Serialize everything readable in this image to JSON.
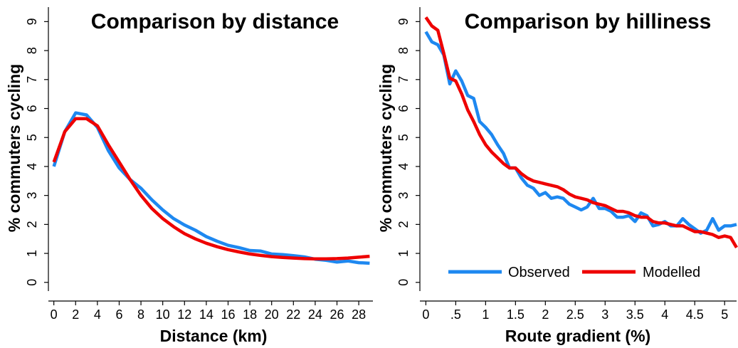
{
  "colors": {
    "observed": "#1e88f0",
    "modelled": "#ee0000"
  },
  "chart_data": [
    {
      "type": "line",
      "title": "Comparison by distance",
      "xlabel": "Distance (km)",
      "ylabel": "% commuters cycling",
      "xlim": [
        -0.5,
        29.3
      ],
      "ylim": [
        -0.3,
        9.5
      ],
      "xticks": [
        0,
        2,
        4,
        6,
        8,
        10,
        12,
        14,
        16,
        18,
        20,
        22,
        24,
        26,
        28
      ],
      "xtick_labels": [
        "0",
        "2",
        "4",
        "6",
        "8",
        "10",
        "12",
        "14",
        "16",
        "18",
        "20",
        "22",
        "24",
        "26",
        "28"
      ],
      "yticks": [
        0,
        1,
        2,
        3,
        4,
        5,
        6,
        7,
        8,
        9
      ],
      "ytick_labels": [
        "0",
        "1",
        "2",
        "3",
        "4",
        "5",
        "6",
        "7",
        "8",
        "9"
      ],
      "grid": false,
      "legend": "none",
      "series": [
        {
          "key": "observed",
          "x": [
            0,
            1,
            2,
            3,
            4,
            5,
            6,
            7,
            8,
            9,
            10,
            11,
            12,
            13,
            14,
            15,
            16,
            17,
            18,
            19,
            20,
            21,
            22,
            23,
            24,
            25,
            26,
            27,
            28,
            29
          ],
          "y": [
            4.0,
            5.2,
            5.85,
            5.78,
            5.35,
            4.55,
            3.95,
            3.55,
            3.25,
            2.85,
            2.5,
            2.2,
            1.98,
            1.8,
            1.58,
            1.42,
            1.28,
            1.2,
            1.1,
            1.08,
            0.98,
            0.96,
            0.92,
            0.88,
            0.8,
            0.76,
            0.7,
            0.74,
            0.68,
            0.66
          ]
        },
        {
          "key": "modelled",
          "x": [
            0,
            1,
            2,
            3,
            4,
            5,
            6,
            7,
            8,
            9,
            10,
            11,
            12,
            13,
            14,
            15,
            16,
            17,
            18,
            19,
            20,
            21,
            22,
            23,
            24,
            25,
            26,
            27,
            28,
            29
          ],
          "y": [
            4.15,
            5.2,
            5.65,
            5.65,
            5.4,
            4.75,
            4.15,
            3.55,
            3.0,
            2.55,
            2.2,
            1.92,
            1.68,
            1.5,
            1.35,
            1.23,
            1.13,
            1.05,
            0.98,
            0.93,
            0.89,
            0.86,
            0.84,
            0.82,
            0.81,
            0.81,
            0.82,
            0.84,
            0.87,
            0.9
          ]
        }
      ]
    },
    {
      "type": "line",
      "title": "Comparison by hilliness",
      "xlabel": "Route gradient (%)",
      "ylabel": "% commuters cycling",
      "xlim": [
        -0.1,
        5.2
      ],
      "ylim": [
        -0.3,
        9.5
      ],
      "xticks": [
        0,
        0.5,
        1,
        1.5,
        2,
        2.5,
        3,
        3.5,
        4,
        4.5,
        5
      ],
      "xtick_labels": [
        "0",
        ".5",
        "1",
        "1.5",
        "2",
        "2.5",
        "3",
        "3.5",
        "4",
        "4.5",
        "5"
      ],
      "yticks": [
        0,
        1,
        2,
        3,
        4,
        5,
        6,
        7,
        8,
        9
      ],
      "ytick_labels": [
        "0",
        "1",
        "2",
        "3",
        "4",
        "5",
        "6",
        "7",
        "8",
        "9"
      ],
      "grid": false,
      "legend": "bottom-center",
      "series": [
        {
          "key": "observed",
          "name": "Observed",
          "x": [
            0,
            0.1,
            0.2,
            0.3,
            0.4,
            0.5,
            0.6,
            0.7,
            0.8,
            0.9,
            1.0,
            1.1,
            1.2,
            1.3,
            1.4,
            1.5,
            1.6,
            1.7,
            1.8,
            1.9,
            2.0,
            2.1,
            2.2,
            2.3,
            2.4,
            2.5,
            2.6,
            2.7,
            2.8,
            2.9,
            3.0,
            3.1,
            3.2,
            3.3,
            3.4,
            3.5,
            3.6,
            3.7,
            3.8,
            3.9,
            4.0,
            4.1,
            4.2,
            4.3,
            4.4,
            4.5,
            4.6,
            4.7,
            4.8,
            4.9,
            5.0,
            5.1,
            5.2
          ],
          "y": [
            8.65,
            8.3,
            8.2,
            7.85,
            6.85,
            7.3,
            6.95,
            6.45,
            6.35,
            5.55,
            5.35,
            5.1,
            4.75,
            4.45,
            3.95,
            3.95,
            3.6,
            3.35,
            3.25,
            3.0,
            3.1,
            2.9,
            2.95,
            2.9,
            2.7,
            2.6,
            2.5,
            2.6,
            2.9,
            2.55,
            2.55,
            2.45,
            2.25,
            2.25,
            2.3,
            2.1,
            2.4,
            2.3,
            1.95,
            2.0,
            2.1,
            1.95,
            1.95,
            2.2,
            2.0,
            1.85,
            1.7,
            1.8,
            2.2,
            1.8,
            1.95,
            1.95,
            2.0
          ]
        },
        {
          "key": "modelled",
          "name": "Modelled",
          "x": [
            0,
            0.1,
            0.2,
            0.3,
            0.4,
            0.5,
            0.6,
            0.7,
            0.8,
            0.9,
            1.0,
            1.1,
            1.2,
            1.3,
            1.4,
            1.5,
            1.6,
            1.7,
            1.8,
            1.9,
            2.0,
            2.1,
            2.2,
            2.3,
            2.4,
            2.5,
            2.6,
            2.7,
            2.8,
            2.9,
            3.0,
            3.1,
            3.2,
            3.3,
            3.4,
            3.5,
            3.6,
            3.7,
            3.8,
            3.9,
            4.0,
            4.1,
            4.2,
            4.3,
            4.4,
            4.5,
            4.6,
            4.7,
            4.8,
            4.9,
            5.0,
            5.1,
            5.2
          ],
          "y": [
            9.15,
            8.85,
            8.7,
            7.9,
            7.05,
            6.95,
            6.5,
            5.95,
            5.55,
            5.1,
            4.75,
            4.5,
            4.3,
            4.1,
            3.95,
            3.95,
            3.75,
            3.6,
            3.5,
            3.45,
            3.4,
            3.35,
            3.3,
            3.2,
            3.05,
            2.95,
            2.9,
            2.85,
            2.75,
            2.7,
            2.65,
            2.55,
            2.45,
            2.45,
            2.4,
            2.3,
            2.25,
            2.25,
            2.1,
            2.05,
            2.05,
            2.0,
            1.95,
            1.95,
            1.85,
            1.75,
            1.75,
            1.7,
            1.65,
            1.55,
            1.6,
            1.55,
            1.2
          ]
        }
      ]
    }
  ]
}
